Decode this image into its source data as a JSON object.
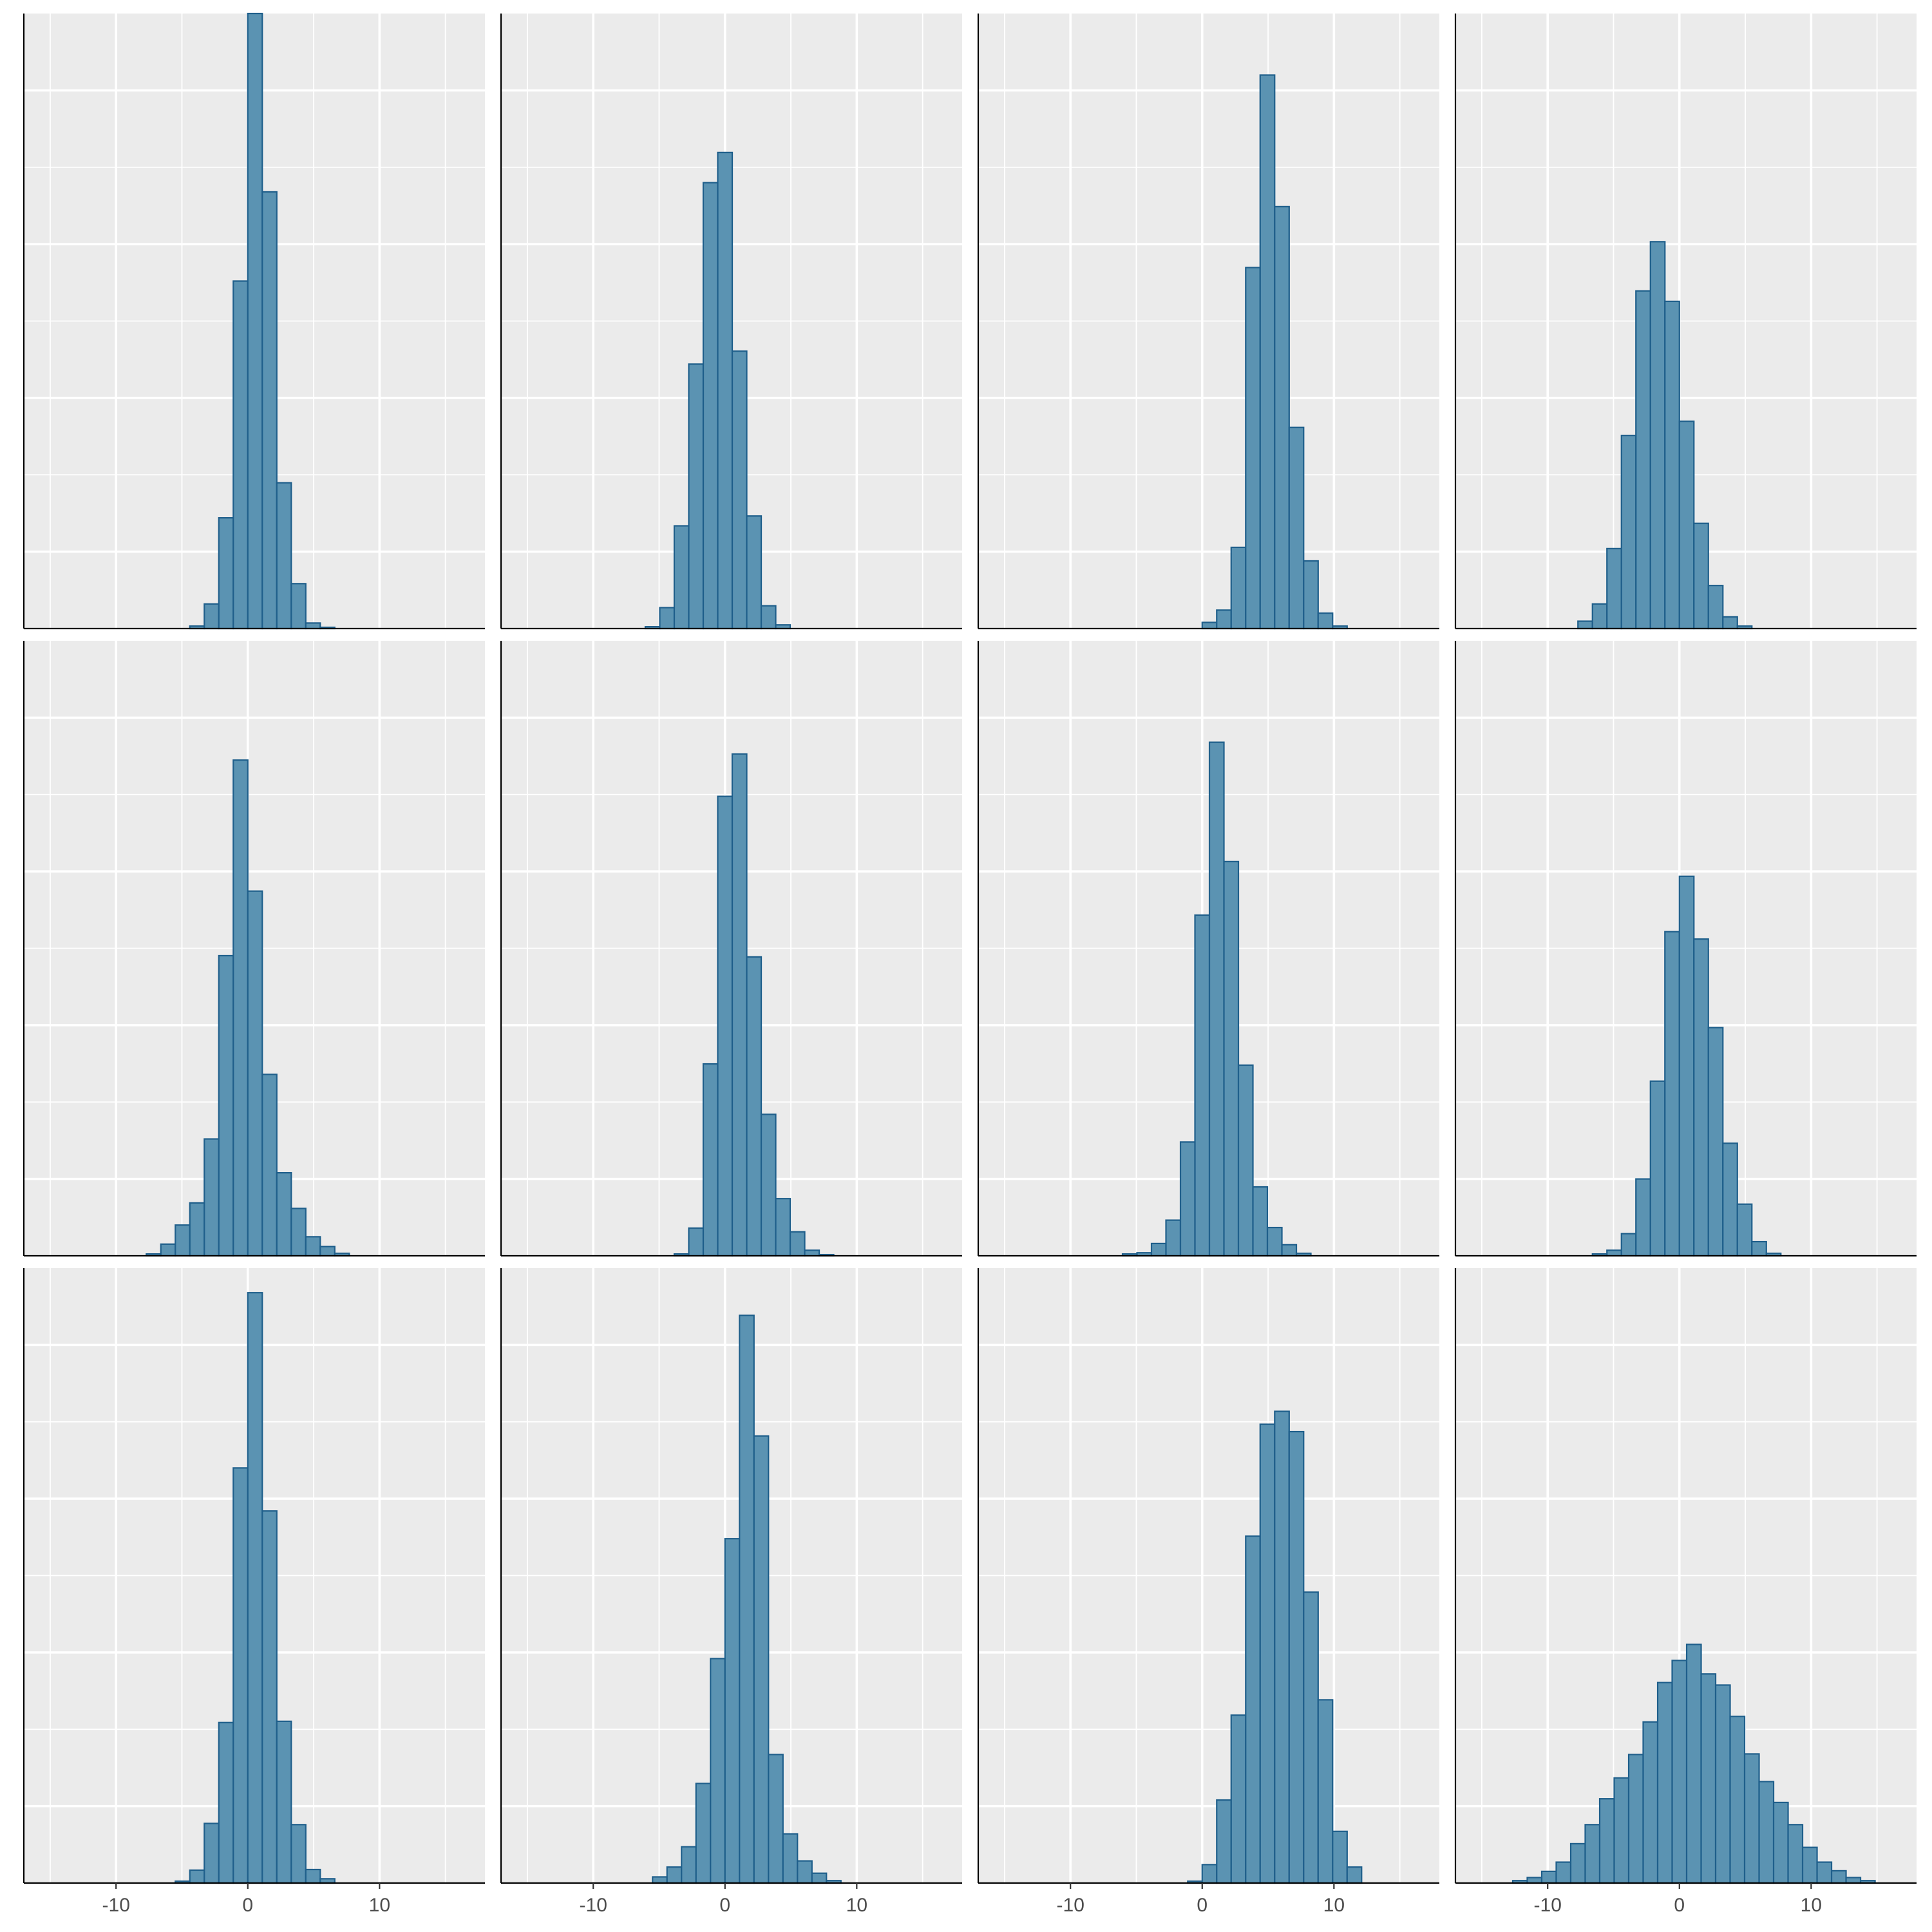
{
  "chart_data": {
    "type": "bar",
    "layout": "faceted histograms, 3 rows x 4 columns, shared x axis, y axis without labels",
    "x_ticks": [
      -10,
      0,
      10
    ],
    "x_tick_labels": [
      "-10",
      "0",
      "10"
    ],
    "xlim": [
      -17,
      18
    ],
    "ylim": [
      0,
      1.0
    ],
    "bin_width": 1.1,
    "grid": true,
    "colors": {
      "bar_fill": "#5B93B2",
      "bar_stroke": "#1F5F8B",
      "panel_bg": "#EBEBEB",
      "grid": "#FFFFFF"
    },
    "panels": [
      {
        "bins": [
          {
            "x": -3.85,
            "height": 0.004
          },
          {
            "x": -2.75,
            "height": 0.04
          },
          {
            "x": -1.65,
            "height": 0.18
          },
          {
            "x": -0.55,
            "height": 0.565
          },
          {
            "x": 0.55,
            "height": 1.0
          },
          {
            "x": 1.65,
            "height": 0.71
          },
          {
            "x": 2.75,
            "height": 0.237
          },
          {
            "x": 3.85,
            "height": 0.073
          },
          {
            "x": 4.95,
            "height": 0.009
          },
          {
            "x": 6.05,
            "height": 0.002
          }
        ]
      },
      {
        "bins": [
          {
            "x": -5.5,
            "height": 0.003
          },
          {
            "x": -4.4,
            "height": 0.034
          },
          {
            "x": -3.3,
            "height": 0.167
          },
          {
            "x": -2.2,
            "height": 0.43
          },
          {
            "x": -1.1,
            "height": 0.725
          },
          {
            "x": 0.0,
            "height": 0.774
          },
          {
            "x": 1.1,
            "height": 0.451
          },
          {
            "x": 2.2,
            "height": 0.183
          },
          {
            "x": 3.3,
            "height": 0.037
          },
          {
            "x": 4.4,
            "height": 0.006
          }
        ]
      },
      {
        "bins": [
          {
            "x": 0.55,
            "height": 0.01
          },
          {
            "x": 1.65,
            "height": 0.03
          },
          {
            "x": 2.75,
            "height": 0.132
          },
          {
            "x": 3.85,
            "height": 0.587
          },
          {
            "x": 4.95,
            "height": 0.9
          },
          {
            "x": 6.05,
            "height": 0.686
          },
          {
            "x": 7.15,
            "height": 0.327
          },
          {
            "x": 8.25,
            "height": 0.11
          },
          {
            "x": 9.35,
            "height": 0.025
          },
          {
            "x": 10.45,
            "height": 0.004
          }
        ]
      },
      {
        "bins": [
          {
            "x": -7.15,
            "height": 0.012
          },
          {
            "x": -6.05,
            "height": 0.04
          },
          {
            "x": -4.95,
            "height": 0.13
          },
          {
            "x": -3.85,
            "height": 0.314
          },
          {
            "x": -2.75,
            "height": 0.549
          },
          {
            "x": -1.65,
            "height": 0.629
          },
          {
            "x": -0.55,
            "height": 0.532
          },
          {
            "x": 0.55,
            "height": 0.337
          },
          {
            "x": 1.65,
            "height": 0.171
          },
          {
            "x": 2.75,
            "height": 0.07
          },
          {
            "x": 3.85,
            "height": 0.019
          },
          {
            "x": 4.95,
            "height": 0.004
          }
        ]
      },
      {
        "bins": [
          {
            "x": -7.15,
            "height": 0.003
          },
          {
            "x": -6.05,
            "height": 0.019
          },
          {
            "x": -4.95,
            "height": 0.05
          },
          {
            "x": -3.85,
            "height": 0.086
          },
          {
            "x": -2.75,
            "height": 0.19
          },
          {
            "x": -1.65,
            "height": 0.488
          },
          {
            "x": -0.55,
            "height": 0.806
          },
          {
            "x": 0.55,
            "height": 0.593
          },
          {
            "x": 1.65,
            "height": 0.295
          },
          {
            "x": 2.75,
            "height": 0.135
          },
          {
            "x": 3.85,
            "height": 0.077
          },
          {
            "x": 4.95,
            "height": 0.031
          },
          {
            "x": 6.05,
            "height": 0.015
          },
          {
            "x": 7.15,
            "height": 0.004
          }
        ]
      },
      {
        "bins": [
          {
            "x": -3.3,
            "height": 0.003
          },
          {
            "x": -2.2,
            "height": 0.045
          },
          {
            "x": -1.1,
            "height": 0.312
          },
          {
            "x": 0.0,
            "height": 0.747
          },
          {
            "x": 1.1,
            "height": 0.816
          },
          {
            "x": 2.2,
            "height": 0.486
          },
          {
            "x": 3.3,
            "height": 0.23
          },
          {
            "x": 4.4,
            "height": 0.093
          },
          {
            "x": 5.5,
            "height": 0.039
          },
          {
            "x": 6.6,
            "height": 0.009
          },
          {
            "x": 7.7,
            "height": 0.002
          }
        ]
      },
      {
        "bins": [
          {
            "x": -5.5,
            "height": 0.003
          },
          {
            "x": -4.4,
            "height": 0.005
          },
          {
            "x": -3.3,
            "height": 0.02
          },
          {
            "x": -2.2,
            "height": 0.058
          },
          {
            "x": -1.1,
            "height": 0.185
          },
          {
            "x": 0.0,
            "height": 0.554
          },
          {
            "x": 1.1,
            "height": 0.835
          },
          {
            "x": 2.2,
            "height": 0.641
          },
          {
            "x": 3.3,
            "height": 0.31
          },
          {
            "x": 4.4,
            "height": 0.112
          },
          {
            "x": 5.5,
            "height": 0.046
          },
          {
            "x": 6.6,
            "height": 0.018
          },
          {
            "x": 7.7,
            "height": 0.004
          }
        ]
      },
      {
        "bins": [
          {
            "x": -6.05,
            "height": 0.003
          },
          {
            "x": -4.95,
            "height": 0.009
          },
          {
            "x": -3.85,
            "height": 0.036
          },
          {
            "x": -2.75,
            "height": 0.125
          },
          {
            "x": -1.65,
            "height": 0.284
          },
          {
            "x": -0.55,
            "height": 0.527
          },
          {
            "x": 0.55,
            "height": 0.617
          },
          {
            "x": 1.65,
            "height": 0.515
          },
          {
            "x": 2.75,
            "height": 0.371
          },
          {
            "x": 3.85,
            "height": 0.183
          },
          {
            "x": 4.95,
            "height": 0.084
          },
          {
            "x": 6.05,
            "height": 0.023
          },
          {
            "x": 7.15,
            "height": 0.004
          }
        ]
      },
      {
        "bins": [
          {
            "x": -4.95,
            "height": 0.003
          },
          {
            "x": -3.85,
            "height": 0.021
          },
          {
            "x": -2.75,
            "height": 0.097
          },
          {
            "x": -1.65,
            "height": 0.261
          },
          {
            "x": -0.55,
            "height": 0.675
          },
          {
            "x": 0.55,
            "height": 0.96
          },
          {
            "x": 1.65,
            "height": 0.605
          },
          {
            "x": 2.75,
            "height": 0.263
          },
          {
            "x": 3.85,
            "height": 0.095
          },
          {
            "x": 4.95,
            "height": 0.022
          },
          {
            "x": 6.05,
            "height": 0.007
          }
        ]
      },
      {
        "bins": [
          {
            "x": -4.95,
            "height": 0.01
          },
          {
            "x": -3.85,
            "height": 0.026
          },
          {
            "x": -2.75,
            "height": 0.059
          },
          {
            "x": -1.65,
            "height": 0.162
          },
          {
            "x": -0.55,
            "height": 0.365
          },
          {
            "x": 0.55,
            "height": 0.56
          },
          {
            "x": 1.65,
            "height": 0.923
          },
          {
            "x": 2.75,
            "height": 0.727
          },
          {
            "x": 3.85,
            "height": 0.209
          },
          {
            "x": 4.95,
            "height": 0.08
          },
          {
            "x": 6.05,
            "height": 0.036
          },
          {
            "x": 7.15,
            "height": 0.016
          },
          {
            "x": 8.25,
            "height": 0.004
          }
        ]
      },
      {
        "bins": [
          {
            "x": -0.55,
            "height": 0.003
          },
          {
            "x": 0.55,
            "height": 0.03
          },
          {
            "x": 1.65,
            "height": 0.135
          },
          {
            "x": 2.75,
            "height": 0.273
          },
          {
            "x": 3.85,
            "height": 0.564
          },
          {
            "x": 4.95,
            "height": 0.746
          },
          {
            "x": 6.05,
            "height": 0.767
          },
          {
            "x": 7.15,
            "height": 0.734
          },
          {
            "x": 8.25,
            "height": 0.473
          },
          {
            "x": 9.35,
            "height": 0.298
          },
          {
            "x": 10.45,
            "height": 0.084
          },
          {
            "x": 11.55,
            "height": 0.026
          }
        ]
      },
      {
        "bins": [
          {
            "x": -12.1,
            "height": 0.004
          },
          {
            "x": -11.0,
            "height": 0.009
          },
          {
            "x": -9.9,
            "height": 0.019
          },
          {
            "x": -8.8,
            "height": 0.034
          },
          {
            "x": -7.7,
            "height": 0.064
          },
          {
            "x": -6.6,
            "height": 0.095
          },
          {
            "x": -5.5,
            "height": 0.137
          },
          {
            "x": -4.4,
            "height": 0.171
          },
          {
            "x": -3.3,
            "height": 0.209
          },
          {
            "x": -2.2,
            "height": 0.262
          },
          {
            "x": -1.1,
            "height": 0.326
          },
          {
            "x": 0.0,
            "height": 0.362
          },
          {
            "x": 1.1,
            "height": 0.388
          },
          {
            "x": 2.2,
            "height": 0.34
          },
          {
            "x": 3.3,
            "height": 0.322
          },
          {
            "x": 4.4,
            "height": 0.271
          },
          {
            "x": 5.5,
            "height": 0.21
          },
          {
            "x": 6.6,
            "height": 0.165
          },
          {
            "x": 7.7,
            "height": 0.131
          },
          {
            "x": 8.8,
            "height": 0.095
          },
          {
            "x": 9.9,
            "height": 0.058
          },
          {
            "x": 11.0,
            "height": 0.034
          },
          {
            "x": 12.1,
            "height": 0.02
          },
          {
            "x": 13.2,
            "height": 0.009
          },
          {
            "x": 14.3,
            "height": 0.004
          }
        ]
      }
    ]
  }
}
